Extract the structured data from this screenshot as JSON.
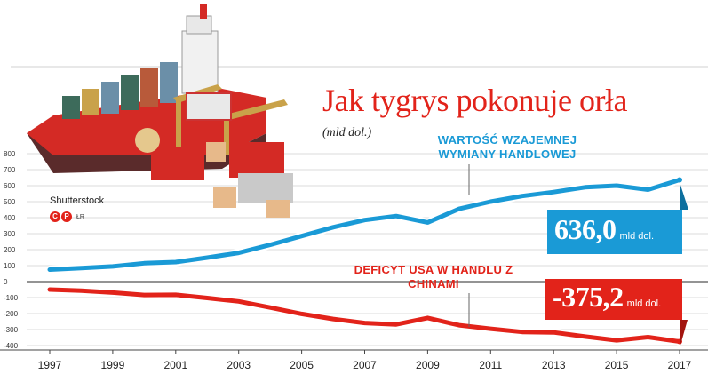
{
  "title": "Jak tygrys pokonuje orła",
  "subtitle": "(mld dol.)",
  "credit": "Shutterstock",
  "logo_initials": "ŁR",
  "chart_data": {
    "type": "line",
    "x": [
      1997,
      1998,
      1999,
      2000,
      2001,
      2002,
      2003,
      2004,
      2005,
      2006,
      2007,
      2008,
      2009,
      2010,
      2011,
      2012,
      2013,
      2014,
      2015,
      2016,
      2017
    ],
    "xticks": [
      "1997",
      "1999",
      "2001",
      "2003",
      "2005",
      "2007",
      "2009",
      "2011",
      "2013",
      "2015",
      "2017"
    ],
    "yticks": [
      "800",
      "700",
      "600",
      "500",
      "400",
      "300",
      "200",
      "100",
      "0",
      "-100",
      "-200",
      "-300",
      "-400"
    ],
    "ylim": [
      -400,
      800
    ],
    "series": [
      {
        "name": "WARTOŚĆ WZAJEMNEJ WYMIANY HANDLOWEJ",
        "color": "#1a9ad6",
        "values": [
          75,
          85,
          95,
          115,
          122,
          150,
          180,
          230,
          285,
          340,
          385,
          410,
          370,
          455,
          500,
          535,
          560,
          590,
          600,
          575,
          636
        ]
      },
      {
        "name": "DEFICYT USA W HANDLU Z CHINAMI",
        "color": "#e2231a",
        "values": [
          -50,
          -57,
          -69,
          -84,
          -83,
          -103,
          -124,
          -162,
          -202,
          -234,
          -259,
          -268,
          -227,
          -273,
          -295,
          -315,
          -318,
          -344,
          -367,
          -347,
          -375.2
        ]
      }
    ],
    "callouts": [
      {
        "value": "636,0",
        "unit": "mld dol."
      },
      {
        "value": "-375,2",
        "unit": "mld dol."
      }
    ]
  }
}
